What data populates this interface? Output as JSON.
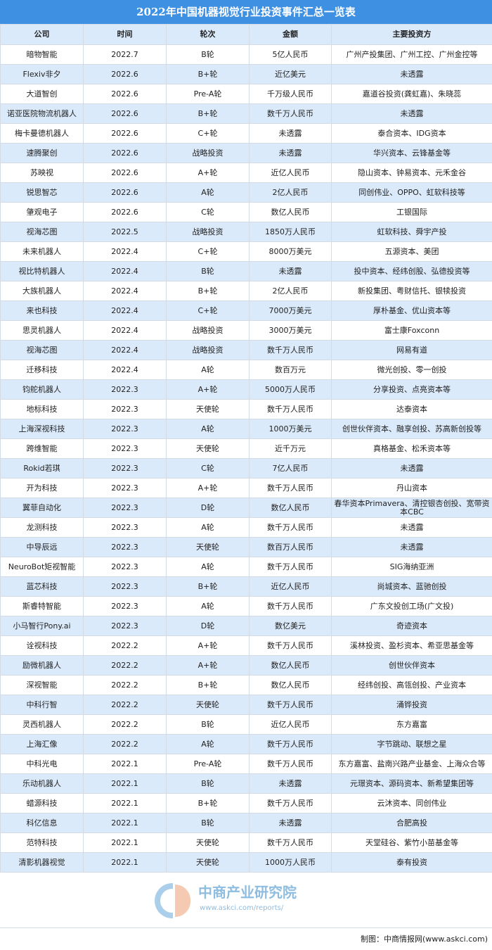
{
  "title": "2022年中国机器视觉行业投资事件汇总一览表",
  "colors": {
    "title_bg": "#3e90e3",
    "alt_row_bg": "#dbeafb"
  },
  "columns": [
    "公司",
    "时间",
    "轮次",
    "金额",
    "主要投资方"
  ],
  "rows": [
    [
      "暗物智能",
      "2022.7",
      "B轮",
      "5亿人民币",
      "广州产投集团、广州工控、广州金控等"
    ],
    [
      "Flexiv非夕",
      "2022.6",
      "B+轮",
      "近亿美元",
      "未透露"
    ],
    [
      "大道智创",
      "2022.6",
      "Pre-A轮",
      "千万级人民币",
      "嘉道谷投资(龚虹嘉)、朱晓蕊"
    ],
    [
      "诺亚医院物流机器人",
      "2022.6",
      "B+轮",
      "数千万人民币",
      "未透露"
    ],
    [
      "梅卡曼德机器人",
      "2022.6",
      "C+轮",
      "未透露",
      "泰合资本、IDG资本"
    ],
    [
      "速腾聚创",
      "2022.6",
      "战略投资",
      "未透露",
      "华兴资本、云锋基金等"
    ],
    [
      "苏映视",
      "2022.6",
      "A+轮",
      "近亿人民币",
      "隐山资本、钟易资本、元禾金谷"
    ],
    [
      "锐思智芯",
      "2022.6",
      "A轮",
      "2亿人民币",
      "同创伟业、OPPO、虹软科技等"
    ],
    [
      "肇观电子",
      "2022.6",
      "C轮",
      "数亿人民币",
      "工银国际"
    ],
    [
      "视海芯图",
      "2022.5",
      "战略投资",
      "1850万人民币",
      "虹软科技、舜宇产投"
    ],
    [
      "未来机器人",
      "2022.4",
      "C+轮",
      "8000万美元",
      "五源资本、美团"
    ],
    [
      "视比特机器人",
      "2022.4",
      "B轮",
      "未透露",
      "投中资本、经纬创股、弘德投资等"
    ],
    [
      "大族机器人",
      "2022.4",
      "B+轮",
      "2亿人民币",
      "新投集团、粤财信托、银犊投资"
    ],
    [
      "来也科技",
      "2022.4",
      "C+轮",
      "7000万美元",
      "厚朴基金、优山资本等"
    ],
    [
      "思灵机器人",
      "2022.4",
      "战略投资",
      "3000万美元",
      "富士康Foxconn"
    ],
    [
      "视海芯图",
      "2022.4",
      "战略投资",
      "数千万人民币",
      "网易有道"
    ],
    [
      "迁移科技",
      "2022.4",
      "A轮",
      "数百万元",
      "微光创投、零一创投"
    ],
    [
      "钧舵机器人",
      "2022.3",
      "A+轮",
      "5000万人民币",
      "分享投资、点亮资本等"
    ],
    [
      "地标科技",
      "2022.3",
      "天使轮",
      "数千万人民币",
      "达泰资本"
    ],
    [
      "上海深视科技",
      "2022.3",
      "A轮",
      "1000万美元",
      "创世伙伴资本、融享创投、苏高新创投等"
    ],
    [
      "跨维智能",
      "2022.3",
      "天使轮",
      "近千万元",
      "真格基金、松禾资本等"
    ],
    [
      "Rokid若琪",
      "2022.3",
      "C轮",
      "7亿人民币",
      "未透露"
    ],
    [
      "开为科技",
      "2022.3",
      "A+轮",
      "数千万人民币",
      "丹山资本"
    ],
    [
      "翼菲自动化",
      "2022.3",
      "D轮",
      "数亿人民币",
      "春华资本Primavera、清控银杏创投、宽带资本CBC"
    ],
    [
      "龙测科技",
      "2022.3",
      "A轮",
      "数千万人民币",
      "未透露"
    ],
    [
      "中导辰远",
      "2022.3",
      "天使轮",
      "数百万人民币",
      "未透露"
    ],
    [
      "NeuroBot矩视智能",
      "2022.3",
      "A轮",
      "数千万人民币",
      "SIG海纳亚洲"
    ],
    [
      "蓝芯科技",
      "2022.3",
      "B+轮",
      "近亿人民币",
      "尚城资本、蓝驰创投"
    ],
    [
      "斯睿特智能",
      "2022.3",
      "A轮",
      "数千万人民币",
      "广东文投创工场(广文投)"
    ],
    [
      "小马智行Pony.ai",
      "2022.3",
      "D轮",
      "数亿美元",
      "奇迹资本"
    ],
    [
      "诠视科技",
      "2022.2",
      "A+轮",
      "数千万人民币",
      "溪林投资、盈杉资本、希亚思基金等"
    ],
    [
      "励微机器人",
      "2022.2",
      "A+轮",
      "数亿人民币",
      "创世伙伴资本"
    ],
    [
      "深视智能",
      "2022.2",
      "B+轮",
      "数亿人民币",
      "经纬创投、高瓴创投、产业资本"
    ],
    [
      "中科行智",
      "2022.2",
      "天使轮",
      "数千万人民币",
      "涌铧投资"
    ],
    [
      "灵西机器人",
      "2022.2",
      "B轮",
      "近亿人民币",
      "东方嘉富"
    ],
    [
      "上海汇像",
      "2022.2",
      "A轮",
      "数千万人民币",
      "字节跳动、联想之星"
    ],
    [
      "中科光电",
      "2022.1",
      "Pre-A轮",
      "数千万人民币",
      "东方嘉富、盐南兴路产业基金、上海众合等"
    ],
    [
      "乐动机器人",
      "2022.1",
      "B轮",
      "未透露",
      "元璟资本、源码资本、新希望集团等"
    ],
    [
      "蜡源科技",
      "2022.1",
      "B+轮",
      "数千万人民币",
      "云沐资本、同创伟业"
    ],
    [
      "科亿信息",
      "2022.1",
      "B轮",
      "未透露",
      "合肥高投"
    ],
    [
      "范特科技",
      "2022.1",
      "天使轮",
      "数千万人民币",
      "天堂硅谷、紫竹小苗基金等"
    ],
    [
      "清影机器视觉",
      "2022.1",
      "天使轮",
      "1000万人民币",
      "泰有投资"
    ]
  ],
  "watermark": {
    "name": "中商产业研究院",
    "url": "www.askci.com/reports/"
  },
  "footer": "制图：中商情报网(www.askci.com)"
}
